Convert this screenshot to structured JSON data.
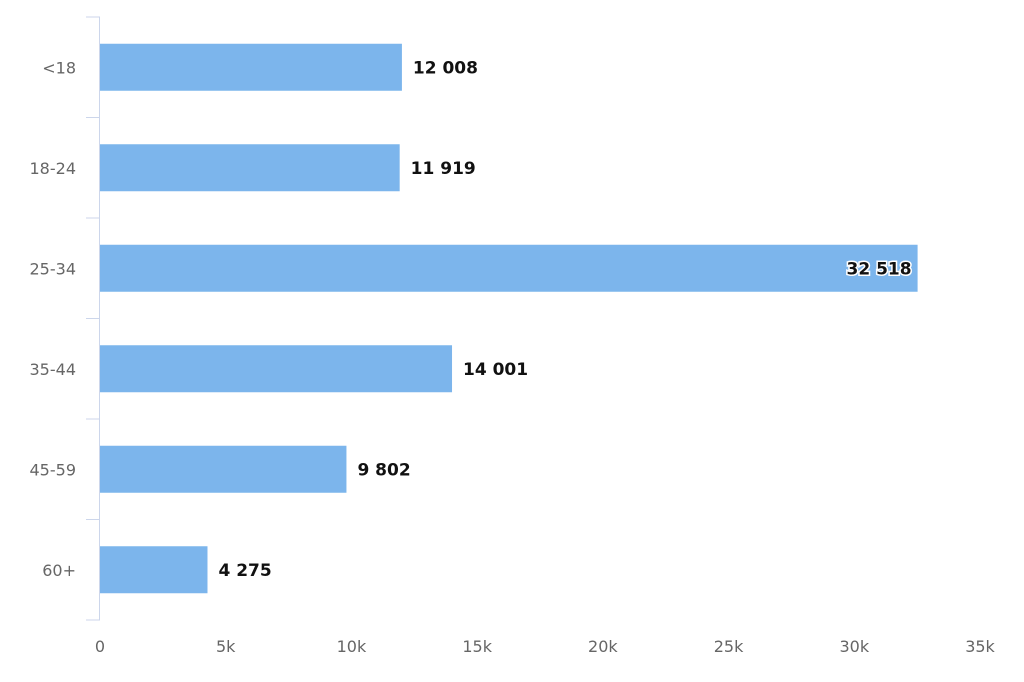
{
  "chart_data": {
    "type": "bar",
    "orientation": "horizontal",
    "title": "",
    "xlabel": "",
    "ylabel": "",
    "categories": [
      "<18",
      "18-24",
      "25-34",
      "35-44",
      "45-59",
      "60+"
    ],
    "values": [
      12008,
      11919,
      32518,
      14001,
      9802,
      4275
    ],
    "value_labels": [
      "12 008",
      "11 919",
      "32 518",
      "14 001",
      "9 802",
      "4 275"
    ],
    "x_ticks": [
      0,
      5000,
      10000,
      15000,
      20000,
      25000,
      30000,
      35000
    ],
    "x_tick_labels": [
      "0",
      "5k",
      "10k",
      "15k",
      "20k",
      "25k",
      "30k",
      "35k"
    ],
    "xlim": [
      0,
      35000
    ],
    "grid": false,
    "legend": "none",
    "colors": {
      "bar": "#7cb5ec",
      "axis": "#ccd6eb",
      "label": "#666666",
      "data_label": "#111111"
    }
  }
}
